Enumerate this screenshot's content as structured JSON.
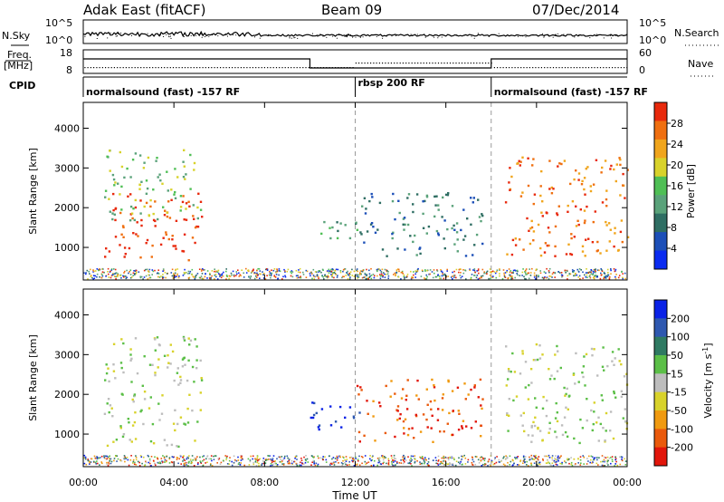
{
  "header": {
    "station": "Adak East (fitACF)",
    "beam": "Beam 09",
    "date": "07/Dec/2014"
  },
  "noise_panel": {
    "left_label": "N.Sky",
    "right_label": "N.Search",
    "ticks": [
      "10^5",
      "10^0"
    ]
  },
  "freq_panel": {
    "left_label_1": "Freq.",
    "left_label_2": "[MHz]",
    "left_ticks": [
      "18",
      "8"
    ],
    "right_label": "Nave",
    "right_ticks": [
      "60",
      "0"
    ]
  },
  "cpid": {
    "label": "CPID",
    "segments": [
      {
        "start": 0,
        "end": 12,
        "name": "normalsound (fast) -157 RF"
      },
      {
        "start": 12,
        "end": 18,
        "name": "rbsp 200 RF"
      },
      {
        "start": 18,
        "end": 24,
        "name": "normalsound (fast) -157 RF"
      }
    ]
  },
  "colors": {
    "power": [
      "#0a2bf0",
      "#1c4fb8",
      "#2f6e63",
      "#5aa27a",
      "#4fbf55",
      "#d8d22b",
      "#f0a51c",
      "#ef6f10",
      "#e8290c"
    ],
    "velocity": [
      "#0a22e6",
      "#2e58b0",
      "#2f7a62",
      "#5bbf47",
      "#bdbdbd",
      "#d8d22b",
      "#f09a10",
      "#ea5a0c",
      "#e2160b"
    ]
  },
  "axes": {
    "xlabel": "Time UT",
    "x_ticks": [
      "00:00",
      "04:00",
      "08:00",
      "12:00",
      "16:00",
      "20:00",
      "00:00"
    ],
    "ylabel": "Slant Range [km]",
    "y_ticks": [
      "1000",
      "2000",
      "3000",
      "4000"
    ]
  },
  "chart_data": [
    {
      "type": "heatmap",
      "title": "Power [dB]",
      "xlabel": "Time UT",
      "ylabel": "Slant Range [km]",
      "xlim": [
        0,
        24
      ],
      "ylim": [
        180,
        4650
      ],
      "colorbar_label": "Power [dB]",
      "colorbar_ticks": [
        "4",
        "8",
        "12",
        "16",
        "20",
        "24",
        "28"
      ],
      "colorbar_range": [
        0,
        30
      ],
      "regions": [
        {
          "t0": 0.9,
          "t1": 5.2,
          "r0": 700,
          "r1": 2400,
          "color_index": 8
        },
        {
          "t0": 0.9,
          "t1": 5.2,
          "r0": 1700,
          "r1": 3500,
          "color_index": 4
        },
        {
          "t0": 10.0,
          "t1": 12.3,
          "r0": 1200,
          "r1": 1800,
          "color_index": 3
        },
        {
          "t0": 12.0,
          "t1": 17.6,
          "r0": 800,
          "r1": 2400,
          "color_index": 2
        },
        {
          "t0": 18.6,
          "t1": 24.0,
          "r0": 800,
          "r1": 3300,
          "color_index": 7
        }
      ]
    },
    {
      "type": "heatmap",
      "title": "Velocity [m s^-1]",
      "xlabel": "Time UT",
      "ylabel": "Slant Range [km]",
      "xlim": [
        0,
        24
      ],
      "ylim": [
        180,
        4650
      ],
      "colorbar_label": "Velocity [m s",
      "colorbar_label_sup": "-1",
      "colorbar_label_end": "]",
      "colorbar_ticks": [
        "200",
        "100",
        "50",
        "15",
        "-15",
        "-50",
        "-100",
        "-200"
      ],
      "colorbar_range": [
        -250,
        250
      ],
      "regions": [
        {
          "t0": 0.9,
          "t1": 5.2,
          "r0": 700,
          "r1": 3500,
          "color_index": 4
        },
        {
          "t0": 10.0,
          "t1": 12.3,
          "r0": 1100,
          "r1": 1900,
          "color_index": 0
        },
        {
          "t0": 12.0,
          "t1": 17.6,
          "r0": 800,
          "r1": 2400,
          "color_index": 7
        },
        {
          "t0": 18.6,
          "t1": 24.0,
          "r0": 800,
          "r1": 3300,
          "color_index": 4
        }
      ]
    }
  ]
}
